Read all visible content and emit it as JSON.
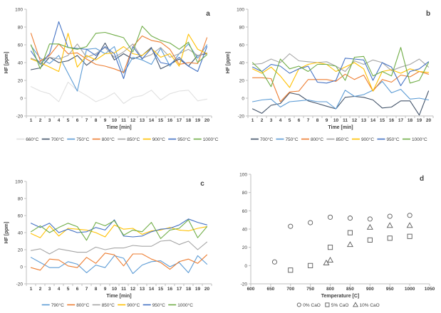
{
  "figure_title": "",
  "chart_data": [
    {
      "id": "a",
      "letter": "a",
      "type": "line",
      "xlabel": "Time [min]",
      "ylabel": "HF [ppm]",
      "ylim": [
        -20,
        100
      ],
      "yticks": [
        -20,
        0,
        20,
        40,
        60,
        80,
        100
      ],
      "x": [
        1,
        2,
        3,
        4,
        5,
        6,
        7,
        8,
        9,
        10,
        11,
        12,
        13,
        14,
        15,
        16,
        17,
        18,
        19,
        20
      ],
      "legend_position": "bottom",
      "grid": false,
      "series": [
        {
          "name": "660°C",
          "color": "#e0e0e0",
          "values": [
            13,
            8,
            5,
            -4,
            18,
            9,
            3,
            -4,
            0,
            6,
            -6,
            1,
            3,
            9,
            -2,
            5,
            8,
            9,
            -3,
            -1
          ]
        },
        {
          "name": "700°C",
          "color": "#44546a",
          "values": [
            32,
            34,
            46,
            40,
            42,
            48,
            37,
            45,
            62,
            43,
            50,
            44,
            48,
            57,
            33,
            38,
            44,
            36,
            48,
            50
          ]
        },
        {
          "name": "750°C",
          "color": "#5b9bd5",
          "values": [
            59,
            45,
            39,
            48,
            28,
            8,
            55,
            56,
            50,
            58,
            28,
            46,
            43,
            38,
            56,
            36,
            50,
            61,
            45,
            60
          ]
        },
        {
          "name": "800°C",
          "color": "#ed7d31",
          "values": [
            73,
            42,
            48,
            61,
            50,
            51,
            44,
            38,
            36,
            33,
            29,
            58,
            70,
            65,
            63,
            55,
            38,
            40,
            39,
            68
          ]
        },
        {
          "name": "850°C",
          "color": "#a5a5a5",
          "values": [
            45,
            41,
            46,
            44,
            48,
            61,
            46,
            50,
            57,
            46,
            52,
            61,
            45,
            49,
            57,
            46,
            50,
            55,
            48,
            51
          ]
        },
        {
          "name": "900°C",
          "color": "#ffc000",
          "values": [
            44,
            40,
            35,
            30,
            73,
            35,
            48,
            43,
            50,
            51,
            58,
            50,
            48,
            56,
            46,
            50,
            36,
            72,
            55,
            50
          ]
        },
        {
          "name": "950°C",
          "color": "#4472c4",
          "values": [
            53,
            38,
            50,
            86,
            57,
            56,
            55,
            48,
            58,
            50,
            22,
            58,
            44,
            56,
            40,
            38,
            46,
            36,
            30,
            58
          ]
        },
        {
          "name": "1000°C",
          "color": "#70ad47",
          "values": [
            60,
            33,
            61,
            61,
            57,
            55,
            58,
            73,
            74,
            71,
            68,
            52,
            81,
            70,
            65,
            62,
            55,
            63,
            40,
            49
          ]
        }
      ]
    },
    {
      "id": "b",
      "letter": "b",
      "type": "line",
      "xlabel": "Time [min]",
      "ylabel": "HF [ppm]",
      "ylim": [
        -20,
        100
      ],
      "yticks": [
        -20,
        0,
        20,
        40,
        60,
        80,
        100
      ],
      "x": [
        1,
        2,
        3,
        4,
        5,
        6,
        7,
        8,
        9,
        10,
        11,
        12,
        13,
        14,
        15,
        16,
        17,
        18,
        19,
        20
      ],
      "legend_position": "bottom",
      "grid": false,
      "series": [
        {
          "name": "700°C",
          "color": "#44546a",
          "values": [
            -12,
            -17,
            -8,
            -6,
            6,
            4,
            -3,
            -6,
            -9,
            -12,
            1,
            2,
            1,
            -2,
            -11,
            -10,
            -3,
            -3,
            -19,
            8
          ]
        },
        {
          "name": "750°C",
          "color": "#5b9bd5",
          "values": [
            -4,
            -2,
            -1,
            -10,
            -4,
            -3,
            -2,
            -4,
            -4,
            -12,
            9,
            2,
            4,
            9,
            19,
            6,
            10,
            -1,
            0,
            -2
          ]
        },
        {
          "name": "800°C",
          "color": "#ed7d31",
          "values": [
            23,
            23,
            22,
            -4,
            7,
            8,
            21,
            21,
            21,
            19,
            27,
            21,
            26,
            8,
            21,
            18,
            26,
            24,
            30,
            27
          ]
        },
        {
          "name": "850°C",
          "color": "#a5a5a5",
          "values": [
            38,
            39,
            44,
            40,
            50,
            42,
            41,
            40,
            41,
            36,
            30,
            42,
            38,
            43,
            40,
            31,
            35,
            38,
            44,
            35
          ]
        },
        {
          "name": "900°C",
          "color": "#ffc000",
          "values": [
            33,
            28,
            35,
            25,
            12,
            33,
            38,
            40,
            38,
            30,
            35,
            40,
            33,
            8,
            30,
            32,
            28,
            33,
            30,
            29
          ]
        },
        {
          "name": "950°C",
          "color": "#4472c4",
          "values": [
            35,
            30,
            38,
            36,
            28,
            33,
            36,
            18,
            17,
            20,
            45,
            44,
            43,
            20,
            40,
            35,
            14,
            30,
            33,
            41
          ]
        },
        {
          "name": "1000°C",
          "color": "#70ad47",
          "values": [
            40,
            30,
            13,
            44,
            33,
            36,
            30,
            38,
            38,
            36,
            20,
            46,
            47,
            25,
            30,
            25,
            57,
            17,
            20,
            40
          ]
        }
      ]
    },
    {
      "id": "c",
      "letter": "c",
      "type": "line",
      "xlabel": "Time [min]",
      "ylabel": "HF [ppm]",
      "ylim": [
        -20,
        100
      ],
      "yticks": [
        -20,
        0,
        20,
        40,
        60,
        80,
        100
      ],
      "x": [
        1,
        2,
        3,
        4,
        5,
        6,
        7,
        8,
        9,
        10,
        11,
        12,
        13,
        14,
        15,
        16,
        17,
        18,
        19,
        20
      ],
      "legend_position": "bottom",
      "grid": false,
      "series": [
        {
          "name": "790°C",
          "color": "#5b9bd5",
          "values": [
            11,
            5,
            -1,
            -1,
            6,
            3,
            -7,
            2,
            -1,
            13,
            10,
            -8,
            2,
            6,
            7,
            0,
            5,
            -7,
            13,
            3
          ]
        },
        {
          "name": "800°C",
          "color": "#ed7d31",
          "values": [
            -1,
            -4,
            9,
            8,
            1,
            -1,
            11,
            4,
            16,
            14,
            1,
            15,
            15,
            9,
            5,
            -3,
            6,
            9,
            4,
            14
          ]
        },
        {
          "name": "850°C",
          "color": "#a5a5a5",
          "values": [
            19,
            21,
            15,
            21,
            19,
            17,
            17,
            23,
            20,
            22,
            22,
            25,
            24,
            24,
            30,
            31,
            26,
            30,
            20,
            29
          ]
        },
        {
          "name": "900°C",
          "color": "#ffc000",
          "values": [
            39,
            34,
            48,
            36,
            45,
            44,
            43,
            40,
            35,
            49,
            44,
            45,
            38,
            42,
            43,
            46,
            43,
            42,
            45,
            47
          ]
        },
        {
          "name": "950°C",
          "color": "#4472c4",
          "values": [
            51,
            46,
            51,
            40,
            44,
            40,
            41,
            46,
            43,
            55,
            36,
            35,
            36,
            41,
            44,
            45,
            49,
            56,
            52,
            49
          ]
        },
        {
          "name": "1000°C",
          "color": "#70ad47",
          "values": [
            41,
            48,
            40,
            46,
            51,
            47,
            31,
            52,
            48,
            54,
            37,
            43,
            41,
            52,
            33,
            43,
            45,
            55,
            34,
            47
          ]
        }
      ]
    },
    {
      "id": "d",
      "letter": "d",
      "type": "scatter",
      "xlabel": "Temperature [C]",
      "ylabel": "HF [ppm]",
      "xlim": [
        600,
        1050
      ],
      "xticks": [
        600,
        650,
        700,
        750,
        800,
        850,
        900,
        950,
        1000,
        1050
      ],
      "ylim": [
        -20,
        100
      ],
      "yticks": [
        -20,
        0,
        20,
        40,
        60,
        80,
        100
      ],
      "legend_position": "bottom",
      "grid": false,
      "marker_color": "#595959",
      "series": [
        {
          "name": "0% CaO",
          "marker": "circle",
          "color": "#595959",
          "points": [
            [
              660,
              4
            ],
            [
              700,
              43
            ],
            [
              750,
              47
            ],
            [
              800,
              53
            ],
            [
              850,
              52
            ],
            [
              900,
              51
            ],
            [
              950,
              54
            ],
            [
              1000,
              55
            ]
          ]
        },
        {
          "name": "5% CaO",
          "marker": "square",
          "color": "#595959",
          "points": [
            [
              700,
              -5
            ],
            [
              750,
              0
            ],
            [
              800,
              20
            ],
            [
              850,
              36
            ],
            [
              900,
              28
            ],
            [
              950,
              30
            ],
            [
              1000,
              32
            ]
          ]
        },
        {
          "name": "10% CaO",
          "marker": "triangle",
          "color": "#595959",
          "points": [
            [
              790,
              3
            ],
            [
              800,
              6
            ],
            [
              850,
              23
            ],
            [
              900,
              42
            ],
            [
              950,
              44
            ],
            [
              1000,
              44
            ]
          ]
        }
      ]
    }
  ]
}
